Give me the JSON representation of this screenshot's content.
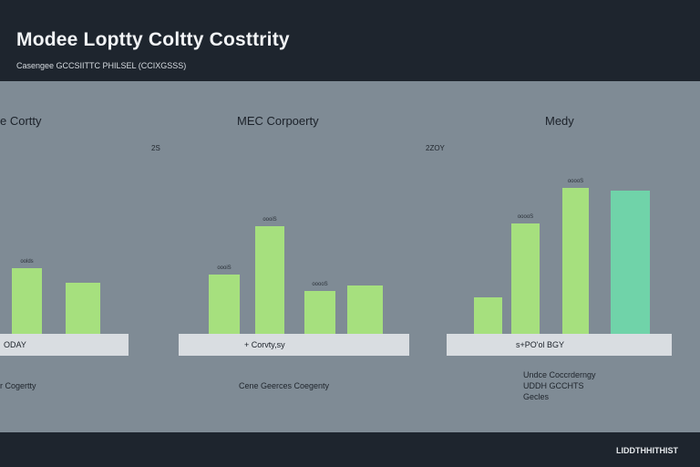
{
  "header": {
    "title": "Modee Loptty Coltty Costtrity",
    "subtitle": "Casengee GCCSIITTC PHILSEL (CCIXGSSS)"
  },
  "footer": {
    "label": "LIDDTHHITHIST"
  },
  "colors": {
    "bar_green": "#a6e07e",
    "bar_teal": "#70d3a9"
  },
  "chart_data": [
    {
      "type": "bar",
      "title": "e Cortty",
      "baseline_label": "ODAY",
      "caption": "r Cogertty",
      "bars": [
        {
          "label": "",
          "value": 72,
          "color": "#a6e07e"
        },
        {
          "label": "",
          "value": 56,
          "color": "#a6e07e"
        }
      ],
      "data_labels": [
        "oolds",
        ""
      ],
      "axis_note": "2S",
      "ylim": [
        0,
        170
      ]
    },
    {
      "type": "bar",
      "title": "MEC Corpoerty",
      "baseline_label": "+ Corvty,sy",
      "caption": "Cene Geerces Coegenty",
      "bars": [
        {
          "label": "",
          "value": 65,
          "color": "#a6e07e"
        },
        {
          "label": "",
          "value": 118,
          "color": "#a6e07e"
        },
        {
          "label": "",
          "value": 47,
          "color": "#a6e07e"
        },
        {
          "label": "",
          "value": 53,
          "color": "#a6e07e"
        }
      ],
      "data_labels": [
        "oooiS",
        "oooiS",
        "ooooS",
        ""
      ],
      "ylim": [
        0,
        170
      ]
    },
    {
      "type": "bar",
      "title": "Medy",
      "baseline_label": "s+PO'ol BGY",
      "caption_lines": [
        "Undce Coccrderngy",
        "UDDH GCCHTS",
        "Gecles"
      ],
      "bars": [
        {
          "label": "",
          "value": 40,
          "color": "#a6e07e"
        },
        {
          "label": "",
          "value": 121,
          "color": "#a6e07e"
        },
        {
          "label": "",
          "value": 160,
          "color": "#a6e07e"
        },
        {
          "label": "",
          "value": 157,
          "color": "#70d3a9"
        }
      ],
      "data_labels": [
        "",
        "ooooS",
        "ooooS",
        ""
      ],
      "axis_note": "2ZOY",
      "ylim": [
        0,
        170
      ]
    }
  ]
}
